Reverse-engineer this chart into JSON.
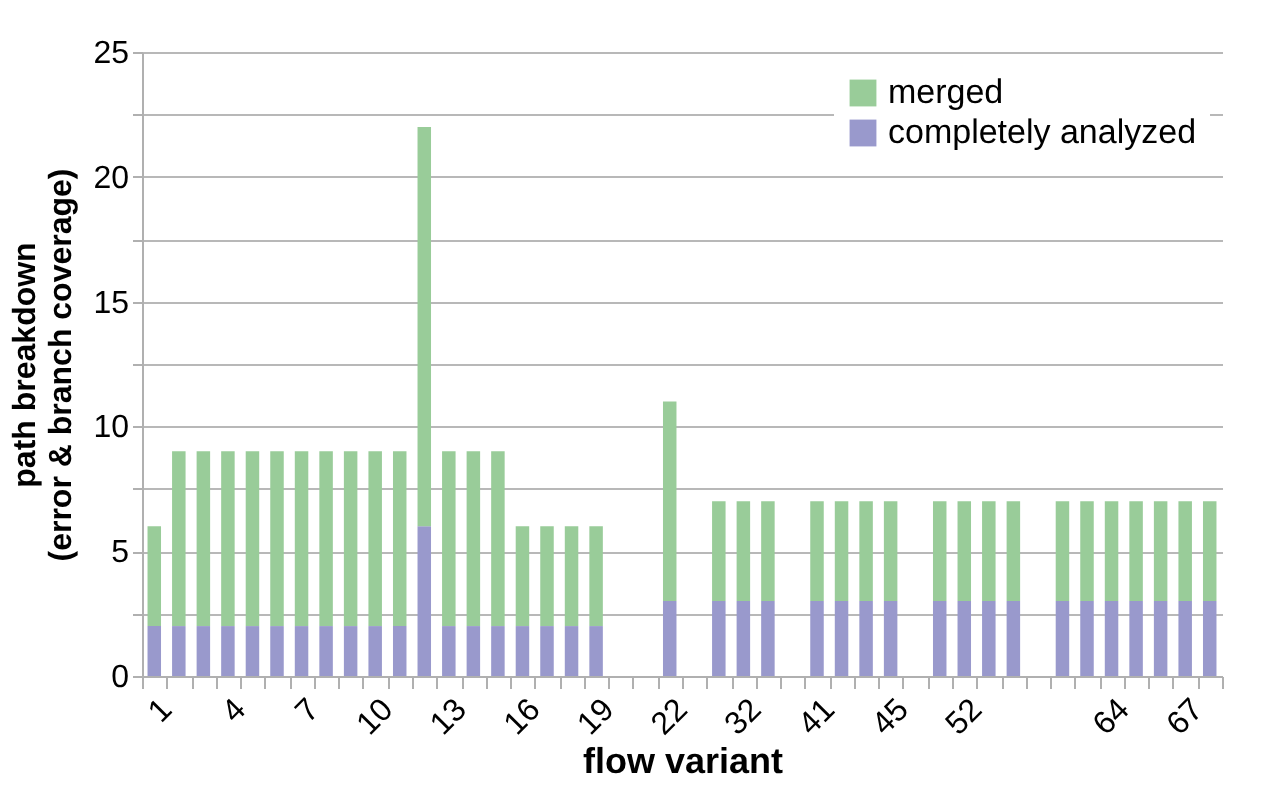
{
  "chart_data": {
    "type": "bar",
    "stacked": true,
    "xlabel": "flow variant",
    "ylabel": "path breakdown\n(error & branch coverage)",
    "categories": [
      "1",
      null,
      null,
      "4",
      null,
      null,
      "7",
      null,
      null,
      "10",
      null,
      null,
      "13",
      null,
      null,
      "16",
      null,
      null,
      "19",
      null,
      null,
      "22",
      null,
      null,
      "32",
      null,
      null,
      "41",
      null,
      null,
      "45",
      null,
      null,
      "52",
      null,
      null,
      null,
      null,
      null,
      "64",
      null,
      null,
      "67",
      null
    ],
    "series": [
      {
        "name": "completely analyzed",
        "color": "#9999cc",
        "values": [
          2,
          2,
          2,
          2,
          2,
          2,
          2,
          2,
          2,
          2,
          2,
          6,
          2,
          2,
          2,
          2,
          2,
          2,
          2,
          null,
          null,
          3,
          null,
          3,
          3,
          3,
          null,
          3,
          3,
          3,
          3,
          null,
          3,
          3,
          3,
          3,
          null,
          3,
          3,
          3,
          3,
          3,
          3,
          3
        ]
      },
      {
        "name": "merged",
        "color": "#99cc99",
        "values": [
          4,
          7,
          7,
          7,
          7,
          7,
          7,
          7,
          7,
          7,
          7,
          16,
          7,
          7,
          7,
          4,
          4,
          4,
          4,
          null,
          null,
          8,
          null,
          4,
          4,
          4,
          null,
          4,
          4,
          4,
          4,
          null,
          4,
          4,
          4,
          4,
          null,
          4,
          4,
          4,
          4,
          4,
          4,
          4
        ]
      }
    ],
    "ylim": [
      0,
      25
    ],
    "yticks": [
      0,
      {
        "value": 2.5,
        "label": null
      },
      5,
      {
        "value": 7.5,
        "label": null
      },
      10,
      {
        "value": 12.5,
        "label": null
      },
      15,
      {
        "value": 17.5,
        "label": null
      },
      20,
      {
        "value": 22.5,
        "label": null
      },
      25
    ],
    "grid": "y",
    "legend": "top right"
  }
}
